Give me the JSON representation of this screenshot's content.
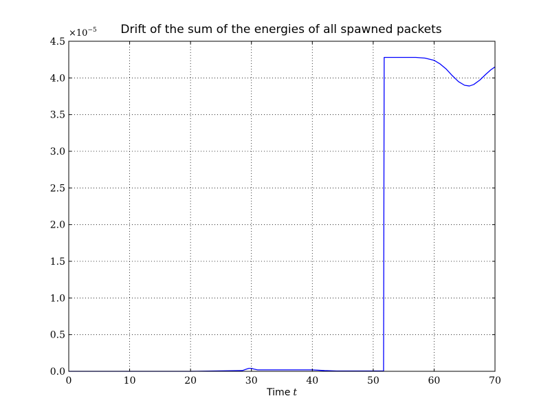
{
  "chart_data": {
    "type": "line",
    "title": "Drift of the sum of the energies of all spawned packets",
    "xlabel_text": "Time",
    "xlabel_var": "t",
    "ylabel": "",
    "offset_label": {
      "base": "×10",
      "exponent": "−5"
    },
    "xlim": [
      0,
      70
    ],
    "ylim": [
      0,
      4.5
    ],
    "xticks": [
      "0",
      "10",
      "20",
      "30",
      "40",
      "50",
      "60",
      "70"
    ],
    "yticks": [
      "0.0",
      "0.5",
      "1.0",
      "1.5",
      "2.0",
      "2.5",
      "3.0",
      "3.5",
      "4.0",
      "4.5"
    ],
    "grid": true,
    "line_color": "#0000ff",
    "series": [
      {
        "x": [
          0,
          10,
          20,
          28.5,
          29.2,
          29.6,
          30.0,
          30.4,
          31,
          35,
          40,
          42,
          44,
          51.7,
          51.8,
          52,
          55,
          57,
          58.5,
          60,
          61,
          62,
          63,
          64,
          65,
          65.8,
          66.5,
          67.5,
          68.5,
          69.3,
          70
        ],
        "y": [
          0,
          0,
          0,
          0.01,
          0.03,
          0.04,
          0.04,
          0.03,
          0.02,
          0.02,
          0.02,
          0.01,
          0.005,
          0.005,
          4.28,
          4.28,
          4.28,
          4.28,
          4.27,
          4.24,
          4.19,
          4.12,
          4.03,
          3.95,
          3.9,
          3.89,
          3.91,
          3.97,
          4.05,
          4.11,
          4.15
        ]
      }
    ]
  }
}
